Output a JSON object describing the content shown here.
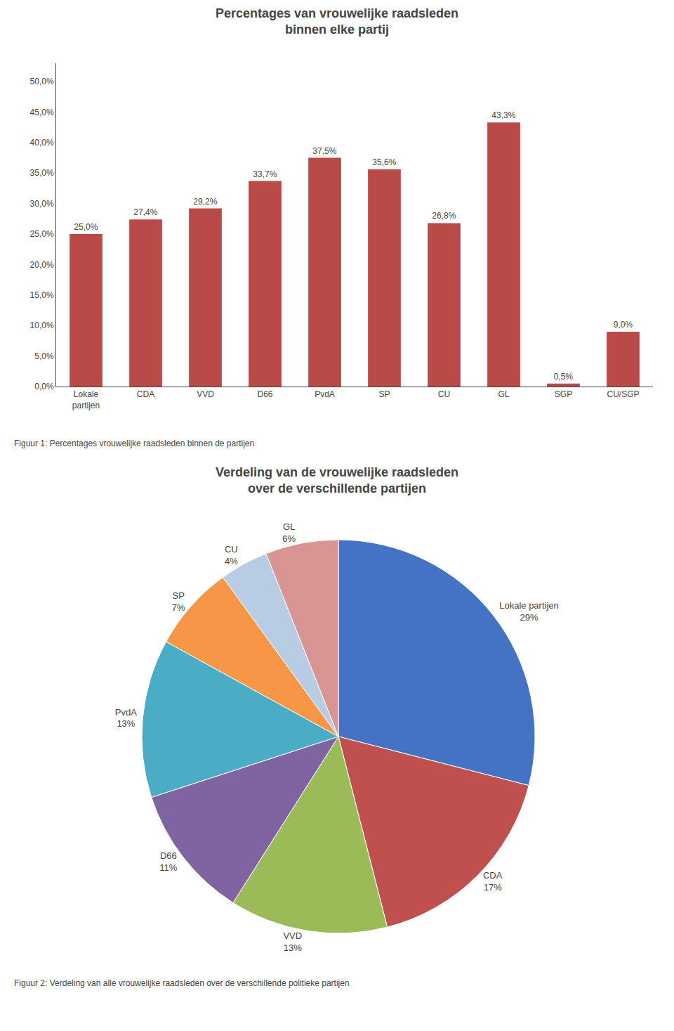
{
  "chart_data": [
    {
      "type": "bar",
      "title": "Percentages van vrouwelijke raadsleden\nbinnen elke partij",
      "categories": [
        "Lokale\npartijen",
        "CDA",
        "VVD",
        "D66",
        "PvdA",
        "SP",
        "CU",
        "GL",
        "SGP",
        "CU/SGP"
      ],
      "values": [
        25.0,
        27.4,
        29.2,
        33.7,
        37.5,
        35.6,
        26.8,
        43.3,
        0.5,
        9.0
      ],
      "value_labels": [
        "25,0%",
        "27,4%",
        "29,2%",
        "33,7%",
        "37,5%",
        "35,6%",
        "26,8%",
        "43,3%",
        "0,5%",
        "9,0%"
      ],
      "color": "#b94a48",
      "ylim": [
        0,
        53
      ],
      "yticks": [
        {
          "value": 0.0,
          "label": "0,0%"
        },
        {
          "value": 5.0,
          "label": "5,0%"
        },
        {
          "value": 10.0,
          "label": "10,0%"
        },
        {
          "value": 15.0,
          "label": "15,0%"
        },
        {
          "value": 20.0,
          "label": "20,0%"
        },
        {
          "value": 25.0,
          "label": "25,0%"
        },
        {
          "value": 30.0,
          "label": "30,0%"
        },
        {
          "value": 35.0,
          "label": "35,0%"
        },
        {
          "value": 40.0,
          "label": "40,0%"
        },
        {
          "value": 45.0,
          "label": "45,0%"
        },
        {
          "value": 50.0,
          "label": "50,0%"
        }
      ],
      "grid": false,
      "data_labels": true,
      "annotations": [
        "Figuur 1: Percentages vrouwelijke raadsleden binnen de partijen"
      ]
    },
    {
      "type": "pie",
      "title": "Verdeling van de vrouwelijke raadsleden\nover de verschillende partijen",
      "categories": [
        "Lokale partijen",
        "CDA",
        "VVD",
        "D66",
        "PvdA",
        "SP",
        "CU",
        "GL"
      ],
      "values": [
        29,
        17,
        13,
        11,
        13,
        7,
        4,
        6
      ],
      "value_labels": [
        "29%",
        "17%",
        "13%",
        "11%",
        "13%",
        "7%",
        "4%",
        "6%"
      ],
      "colors": [
        "#4472c4",
        "#c0504d",
        "#9bbb59",
        "#8064a2",
        "#4bacc6",
        "#f79646",
        "#b8cce4",
        "#d99594"
      ],
      "data_labels": true,
      "annotations": [
        "Figuur 2: Verdeling van alle vrouwelijke raadsleden over de verschillende politieke partijen"
      ]
    }
  ]
}
